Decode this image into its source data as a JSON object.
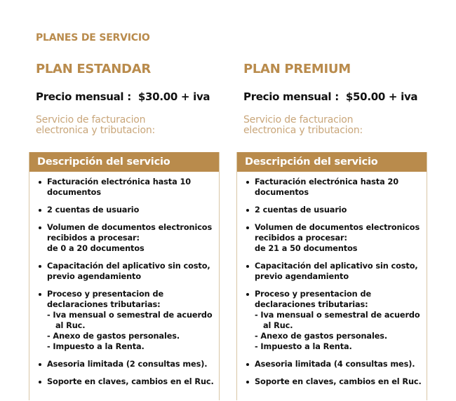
{
  "section_title": "PLANES DE SERVICIO",
  "colors": {
    "accent": "#B98B4C",
    "subtitle": "#C9A67A",
    "border": "#D9C6A6"
  },
  "plans": [
    {
      "name": "PLAN ESTANDAR",
      "price_label": "Precio mensual :",
      "price_value": "$30.00 + iva",
      "service_lines": [
        "Servicio de facturacion",
        "electronica y tributacion:"
      ],
      "card_header": "Descripción del servicio",
      "items": [
        {
          "lines": [
            "Facturación electrónica hasta 10",
            "documentos"
          ]
        },
        {
          "lines": [
            "2 cuentas de usuario"
          ]
        },
        {
          "lines": [
            "Volumen de documentos electronicos",
            "recibidos a procesar:",
            "de 0 a 20 documentos"
          ]
        },
        {
          "lines": [
            "Capacitación del aplicativo sin costo,",
            "previo agendamiento"
          ]
        },
        {
          "lines": [
            "Proceso y presentacion de",
            "declaraciones tributarias:",
            "- Iva mensual o semestral de acuerdo",
            "  al Ruc.",
            "- Anexo de gastos personales.",
            "- Impuesto a la Renta."
          ]
        },
        {
          "lines": [
            "Asesoria limitada (2 consultas mes)."
          ]
        },
        {
          "lines": [
            "Soporte en claves, cambios en el Ruc."
          ]
        }
      ]
    },
    {
      "name": "PLAN PREMIUM",
      "price_label": "Precio mensual :",
      "price_value": "$50.00 + iva",
      "service_lines": [
        "Servicio de facturacion",
        "electronica y tributacion:"
      ],
      "card_header": "Descripción del servicio",
      "items": [
        {
          "lines": [
            "Facturación electrónica hasta 20",
            "documentos"
          ]
        },
        {
          "lines": [
            "2 cuentas de usuario"
          ]
        },
        {
          "lines": [
            "Volumen de documentos electronicos",
            "recibidos a procesar:",
            "de 21 a 50 documentos"
          ]
        },
        {
          "lines": [
            "Capacitación del aplicativo sin costo,",
            "previo agendamiento"
          ]
        },
        {
          "lines": [
            "Proceso y presentacion de",
            "declaraciones tributarias:",
            "- Iva mensual o semestral de acuerdo",
            "  al Ruc.",
            "- Anexo de gastos personales.",
            "- Impuesto a la Renta."
          ]
        },
        {
          "lines": [
            "Asesoria limitada (4 consultas mes)."
          ]
        },
        {
          "lines": [
            "Soporte en claves, cambios en el Ruc."
          ]
        }
      ]
    }
  ]
}
